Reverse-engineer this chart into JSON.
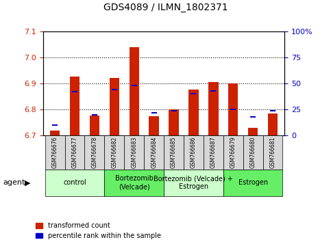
{
  "title": "GDS4089 / ILMN_1802371",
  "samples": [
    "GSM766676",
    "GSM766677",
    "GSM766678",
    "GSM766682",
    "GSM766683",
    "GSM766684",
    "GSM766685",
    "GSM766686",
    "GSM766687",
    "GSM766679",
    "GSM766680",
    "GSM766681"
  ],
  "red_values": [
    6.718,
    6.927,
    6.778,
    6.922,
    7.04,
    6.775,
    6.8,
    6.878,
    6.905,
    6.9,
    6.73,
    6.784
  ],
  "blue_values": [
    10.0,
    42.0,
    20.0,
    44.0,
    48.0,
    22.0,
    24.0,
    40.0,
    43.0,
    25.0,
    18.0,
    24.0
  ],
  "ymin": 6.7,
  "ymax": 7.1,
  "y2min": 0,
  "y2max": 100,
  "yticks": [
    6.7,
    6.8,
    6.9,
    7.0,
    7.1
  ],
  "y2ticks": [
    0,
    25,
    50,
    75,
    100
  ],
  "y2ticklabels": [
    "0",
    "25",
    "50",
    "75",
    "100%"
  ],
  "groups": [
    {
      "label": "control",
      "start": 0,
      "end": 3,
      "color": "#ccffcc"
    },
    {
      "label": "Bortezomib\n(Velcade)",
      "start": 3,
      "end": 6,
      "color": "#66ee66"
    },
    {
      "label": "Bortezomib (Velcade) +\nEstrogen",
      "start": 6,
      "end": 9,
      "color": "#ccffcc"
    },
    {
      "label": "Estrogen",
      "start": 9,
      "end": 12,
      "color": "#66ee66"
    }
  ],
  "bar_width": 0.5,
  "red_color": "#cc2200",
  "blue_color": "#0000cc",
  "legend_red": "transformed count",
  "legend_blue": "percentile rank within the sample",
  "agent_label": "agent",
  "red_label_color": "#cc2200",
  "blue_label_color": "#0000bb"
}
